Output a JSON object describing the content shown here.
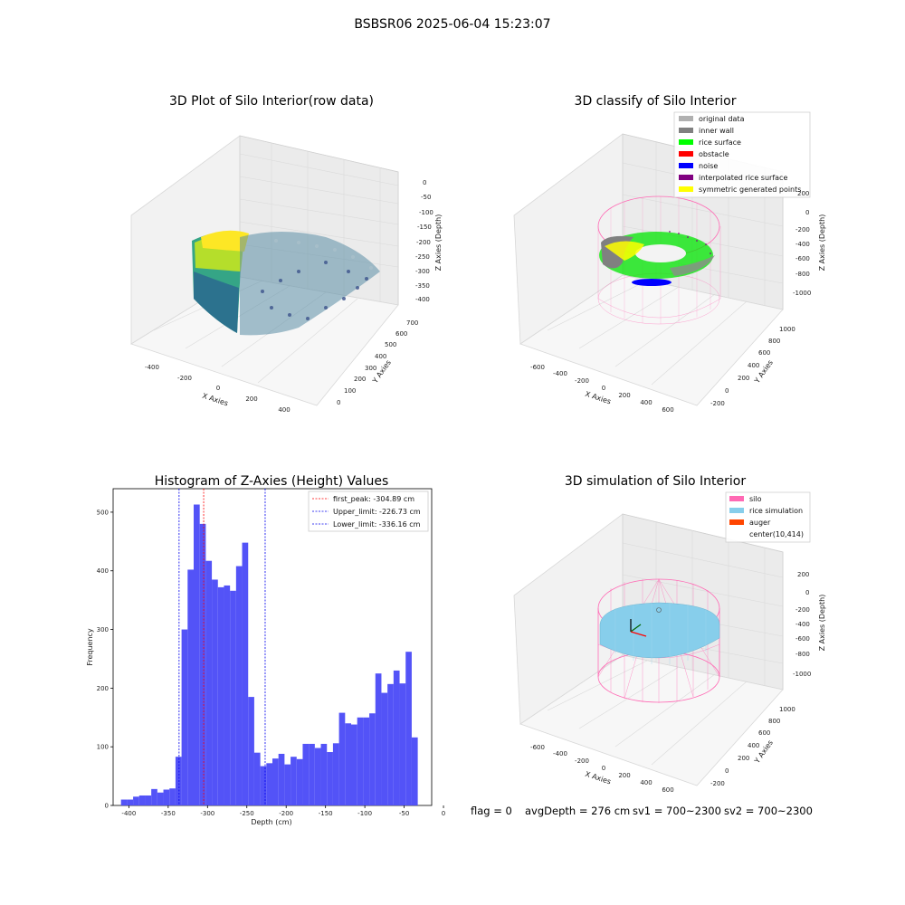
{
  "suptitle": "BSBSR06 2025-06-04 15:23:07",
  "footer": {
    "flag": "flag = 0",
    "avg": "avgDepth = 276 cm",
    "sv1": "sv1 = 700~2300",
    "sv2": "sv2 = 700~2300"
  },
  "colors": {
    "bar": "#4a4af7",
    "first_peak": "#ff0000",
    "limit": "#0000ee",
    "silo": "#ff69b4",
    "rice_sim": "#87ceeb",
    "auger": "#ff4500"
  },
  "chart_data": [
    {
      "type": "scatter3d",
      "title": "3D Plot of Silo Interior(row data)",
      "xlabel": "X Axies",
      "ylabel": "Y Axies",
      "zlabel": "Z Axies (Depth)",
      "x_ticks": [
        "-400",
        "-200",
        "0",
        "200",
        "400"
      ],
      "y_ticks": [
        "0",
        "100",
        "200",
        "300",
        "400",
        "500",
        "600",
        "700"
      ],
      "z_ticks": [
        "0",
        "-50",
        "-100",
        "-150",
        "-200",
        "-250",
        "-300",
        "-350",
        "-400"
      ],
      "colormap": "viridis"
    },
    {
      "type": "scatter3d",
      "title": "3D classify of Silo Interior",
      "xlabel": "X Axies",
      "ylabel": "Y Axies",
      "zlabel": "Z Axies (Depth)",
      "x_ticks": [
        "-600",
        "-400",
        "-200",
        "0",
        "200",
        "400",
        "600"
      ],
      "y_ticks": [
        "-200",
        "0",
        "200",
        "400",
        "600",
        "800",
        "1000"
      ],
      "z_ticks": [
        "200",
        "0",
        "-200",
        "-400",
        "-600",
        "-800",
        "-1000"
      ],
      "legend": [
        {
          "label": "original data",
          "color": "#b0b0b0"
        },
        {
          "label": "inner wall",
          "color": "#808080"
        },
        {
          "label": "rice surface",
          "color": "#00ff00"
        },
        {
          "label": "obstacle",
          "color": "#ff0000"
        },
        {
          "label": "noise",
          "color": "#0000ff"
        },
        {
          "label": "interpolated rice surface",
          "color": "#800080"
        },
        {
          "label": "symmetric generated points",
          "color": "#ffff00"
        }
      ]
    },
    {
      "type": "bar",
      "title": "Histogram of Z-Axies (Height) Values",
      "xlabel": "Depth (cm)",
      "ylabel": "Frequency",
      "xlim": [
        -420,
        -15
      ],
      "ylim": [
        0,
        540
      ],
      "x_ticks": [
        -400,
        -350,
        -300,
        -250,
        -200,
        -150,
        -100,
        -50,
        0
      ],
      "y_ticks": [
        0,
        100,
        200,
        300,
        400,
        500
      ],
      "bin_start": -410,
      "bin_width": 7.7,
      "values": [
        10,
        10,
        15,
        17,
        17,
        28,
        22,
        27,
        29,
        83,
        300,
        402,
        513,
        480,
        417,
        385,
        372,
        375,
        366,
        408,
        448,
        185,
        90,
        67,
        72,
        80,
        88,
        70,
        83,
        79,
        105,
        105,
        98,
        105,
        91,
        106,
        158,
        140,
        138,
        150,
        150,
        157,
        225,
        192,
        207,
        230,
        208,
        262,
        116
      ],
      "lines": [
        {
          "label": "first_peak: -304.89 cm",
          "x": -304.89,
          "color": "#ff0000"
        },
        {
          "label": "Upper_limit: -226.73 cm",
          "x": -226.73,
          "color": "#0000ee"
        },
        {
          "label": "Lower_limit: -336.16 cm",
          "x": -336.16,
          "color": "#0000ee"
        }
      ]
    },
    {
      "type": "surface3d",
      "title": "3D simulation of Silo Interior",
      "xlabel": "X Axies",
      "ylabel": "Y Axies",
      "zlabel": "Z Axies (Depth)",
      "x_ticks": [
        "-600",
        "-400",
        "-200",
        "0",
        "200",
        "400",
        "600"
      ],
      "y_ticks": [
        "-200",
        "0",
        "200",
        "400",
        "600",
        "800",
        "1000"
      ],
      "z_ticks": [
        "200",
        "0",
        "-200",
        "-400",
        "-600",
        "-800",
        "-1000"
      ],
      "legend": [
        {
          "label": "silo",
          "color": "#ff69b4"
        },
        {
          "label": "rice simulation",
          "color": "#87ceeb"
        },
        {
          "label": "auger",
          "color": "#ff4500"
        },
        {
          "label": "center(10,414)",
          "color": ""
        }
      ]
    }
  ]
}
